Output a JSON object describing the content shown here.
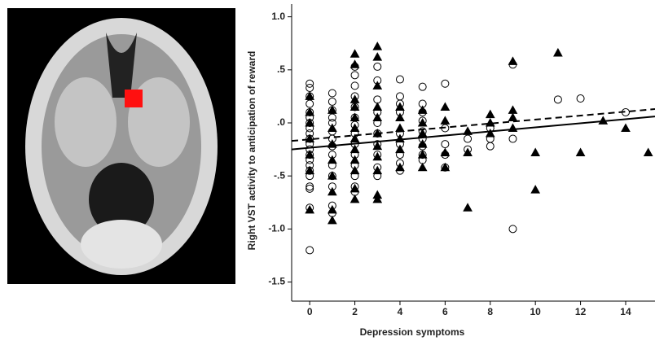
{
  "chart_data": {
    "type": "scatter",
    "xlabel": "Depression symptoms",
    "ylabel": "Right VST activity to anticipation of reward",
    "xlim": [
      -0.8,
      15.3
    ],
    "ylim": [
      -1.68,
      1.12
    ],
    "xticks": [
      0,
      2,
      4,
      6,
      8,
      10,
      12,
      14
    ],
    "yticks": [
      {
        "value": 1.0,
        "label": "1.0"
      },
      {
        "value": 0.5,
        "label": ".5"
      },
      {
        "value": 0,
        "label": ".0"
      },
      {
        "value": -0.5,
        "label": "-.5"
      },
      {
        "value": -1.0,
        "label": "-1.0"
      },
      {
        "value": -1.5,
        "label": "-1.5"
      }
    ],
    "series": [
      {
        "marker": "circle",
        "filled": false,
        "color": "#000000",
        "x": [
          0,
          0,
          0,
          0,
          0,
          0,
          0,
          0,
          0,
          0,
          0,
          0,
          0,
          0,
          0,
          0,
          0,
          0,
          0,
          0,
          0,
          1,
          1,
          1,
          1,
          1,
          1,
          1,
          1,
          1,
          1,
          1,
          1,
          1,
          1,
          2,
          2,
          2,
          2,
          2,
          2,
          2,
          2,
          2,
          2,
          2,
          2,
          2,
          2,
          3,
          3,
          3,
          3,
          3,
          3,
          3,
          3,
          3,
          3,
          4,
          4,
          4,
          4,
          4,
          4,
          4,
          4,
          4,
          5,
          5,
          5,
          5,
          5,
          5,
          5,
          5,
          5,
          6,
          6,
          6,
          6,
          6,
          7,
          7,
          8,
          8,
          8,
          9,
          9,
          9,
          11,
          12,
          14
        ],
        "values": [
          0.37,
          0.33,
          0.25,
          0.18,
          0.1,
          0.05,
          0,
          -0.05,
          -0.1,
          -0.15,
          -0.2,
          -0.25,
          -0.3,
          -0.35,
          -0.4,
          -0.45,
          -0.5,
          -0.6,
          -0.62,
          -0.8,
          -1.2,
          0.28,
          0.2,
          0.12,
          0.05,
          0,
          -0.08,
          -0.15,
          -0.22,
          -0.3,
          -0.4,
          -0.5,
          -0.6,
          -0.78,
          -0.85,
          0.53,
          0.45,
          0.35,
          0.25,
          0.15,
          0.05,
          -0.02,
          -0.1,
          -0.2,
          -0.3,
          -0.4,
          -0.5,
          -0.6,
          -0.65,
          0.53,
          0.4,
          0.22,
          0.1,
          0,
          -0.1,
          -0.2,
          -0.3,
          -0.42,
          -0.5,
          0.41,
          0.25,
          0.18,
          0.1,
          -0.1,
          -0.2,
          -0.3,
          -0.38,
          -0.45,
          0.34,
          0.18,
          0.1,
          0.02,
          -0.08,
          -0.15,
          -0.22,
          -0.3,
          -0.35,
          0.37,
          -0.05,
          -0.2,
          -0.3,
          -0.42,
          -0.15,
          -0.25,
          -0.05,
          -0.15,
          -0.22,
          0.55,
          -0.15,
          -1.0,
          0.22,
          0.23,
          0.1
        ]
      },
      {
        "marker": "triangle",
        "filled": true,
        "color": "#000000",
        "x": [
          0,
          0,
          0,
          0,
          0,
          0,
          0,
          1,
          1,
          1,
          1,
          1,
          1,
          1,
          1,
          2,
          2,
          2,
          2,
          2,
          2,
          2,
          2,
          2,
          2,
          2,
          2,
          3,
          3,
          3,
          3,
          3,
          3,
          3,
          3,
          3,
          3,
          3,
          4,
          4,
          4,
          4,
          4,
          4,
          5,
          5,
          5,
          5,
          5,
          5,
          6,
          6,
          6,
          6,
          7,
          7,
          7,
          8,
          8,
          8,
          9,
          9,
          9,
          9,
          10,
          10,
          11,
          12,
          13,
          14,
          15
        ],
        "values": [
          0.25,
          0.1,
          0,
          -0.15,
          -0.3,
          -0.45,
          -0.82,
          0.12,
          -0.05,
          -0.2,
          -0.35,
          -0.5,
          -0.65,
          -0.82,
          -0.92,
          0.65,
          0.55,
          0.22,
          0.15,
          0.05,
          -0.05,
          -0.15,
          -0.25,
          -0.35,
          -0.45,
          -0.62,
          -0.72,
          0.72,
          0.62,
          0.35,
          0.15,
          0.05,
          -0.1,
          -0.22,
          -0.32,
          -0.45,
          -0.68,
          -0.72,
          0.15,
          0.05,
          -0.05,
          -0.15,
          -0.25,
          -0.42,
          0.12,
          0,
          -0.1,
          -0.2,
          -0.3,
          -0.42,
          0.15,
          0.02,
          -0.28,
          -0.42,
          -0.08,
          -0.28,
          -0.8,
          0.08,
          0,
          -0.1,
          0.58,
          0.12,
          0.05,
          -0.05,
          -0.28,
          -0.63,
          0.66,
          -0.28,
          0.02,
          -0.05,
          -0.28
        ]
      }
    ],
    "fit_lines": [
      {
        "style": "solid",
        "x": [
          -0.8,
          15.3
        ],
        "values": [
          -0.25,
          0.06
        ]
      },
      {
        "style": "dashed",
        "x": [
          -0.8,
          15.3
        ],
        "values": [
          -0.17,
          0.13
        ]
      }
    ]
  }
}
